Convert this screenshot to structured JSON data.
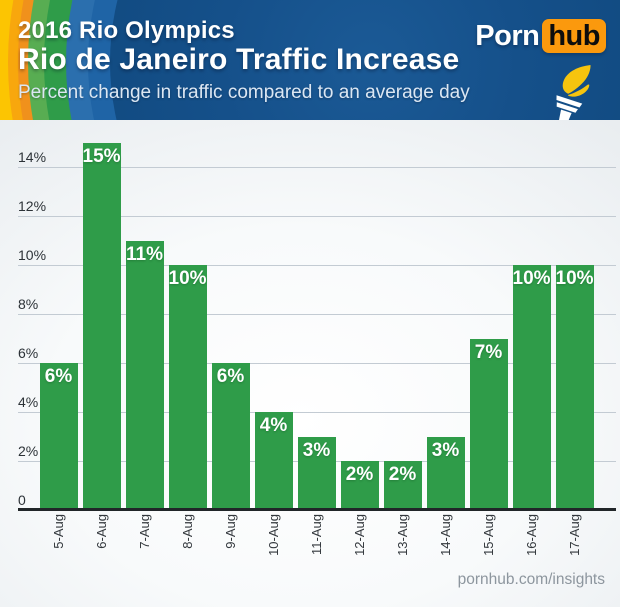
{
  "header": {
    "kicker": "2016 Rio Olympics",
    "title": "Rio de Janeiro Traffic Increase",
    "subtitle": "Percent change in traffic compared to an average day",
    "logo": {
      "part1": "Porn",
      "part2": "hub"
    }
  },
  "footer": {
    "credit": "pornhub.com/insights"
  },
  "chart_data": {
    "type": "bar",
    "title": "Rio de Janeiro Traffic Increase",
    "subtitle": "Percent change in traffic compared to an average day",
    "categories": [
      "5-Aug",
      "6-Aug",
      "7-Aug",
      "8-Aug",
      "9-Aug",
      "10-Aug",
      "11-Aug",
      "12-Aug",
      "13-Aug",
      "14-Aug",
      "15-Aug",
      "16-Aug",
      "17-Aug"
    ],
    "values": [
      6,
      15,
      11,
      10,
      6,
      4,
      3,
      2,
      2,
      3,
      7,
      10,
      10
    ],
    "bar_labels": [
      "6%",
      "15%",
      "11%",
      "10%",
      "6%",
      "4%",
      "3%",
      "2%",
      "2%",
      "3%",
      "7%",
      "10%",
      "10%"
    ],
    "y_gridlines": [
      2,
      4,
      6,
      8,
      10,
      12,
      14
    ],
    "y_tick_labels": [
      "2%",
      "4%",
      "6%",
      "8%",
      "10%",
      "12%",
      "14%"
    ],
    "baseline_label": "0",
    "ylim": [
      0,
      15.5
    ],
    "grid": true,
    "legend_position": "none",
    "xlabel": "",
    "ylabel": "",
    "bar_color": "#2f9c49",
    "bar_label_color": "#ffffff"
  },
  "colors": {
    "header_base_blue": "#134f88",
    "band_blue_inner": "#1d63a5",
    "band_blue_outer": "#2a70b0",
    "band_green": "#2f9c49",
    "band_green_light": "#58ad52",
    "band_orange_inner": "#f0911c",
    "band_orange_outer": "#f8a70d",
    "band_yellow": "#fcc502",
    "chart_bg": "#edf0f2",
    "gridline": "#c3cbd3",
    "axis": "#212629",
    "logo_orange": "#fb990d",
    "flame_yellow": "#f6c40e"
  }
}
